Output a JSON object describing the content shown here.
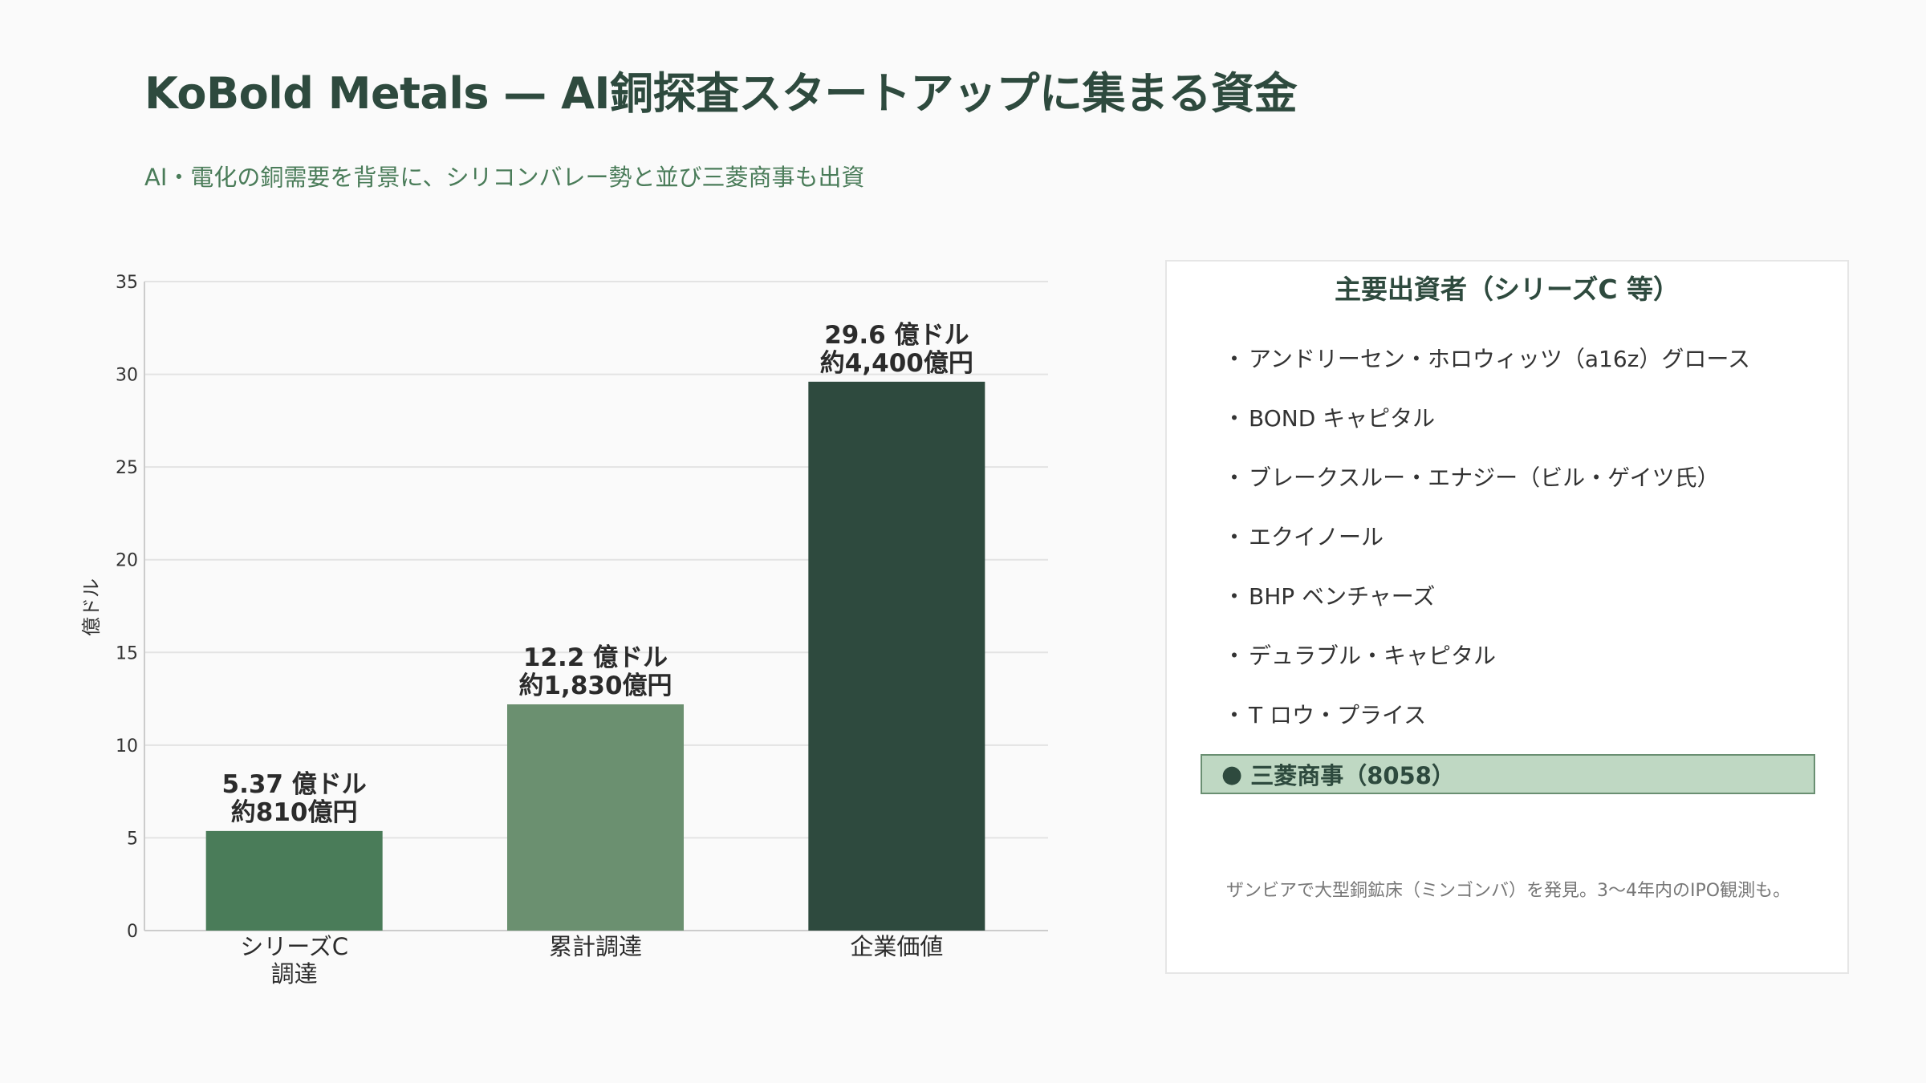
{
  "title": "KoBold Metals — AI銅探査スタートアップに集まる資金",
  "subtitle": "AI・電化の銅需要を背景に、シリコンバレー勢と並び三菱商事も出資",
  "chart_data": {
    "type": "bar",
    "categories": [
      [
        "シリーズC",
        "調達"
      ],
      [
        "累計調達"
      ],
      [
        "企業価値"
      ]
    ],
    "values": [
      5.37,
      12.2,
      29.6
    ],
    "value_labels": [
      [
        "5.37 億ドル",
        "約810億円"
      ],
      [
        "12.2 億ドル",
        "約1,830億円"
      ],
      [
        "29.6 億ドル",
        "約4,400億円"
      ]
    ],
    "colors": [
      "#4a7c59",
      "#6b9070",
      "#2e4a3e"
    ],
    "ylabel": "億ドル",
    "ylim": [
      0,
      35
    ],
    "yticks": [
      0,
      5,
      10,
      15,
      20,
      25,
      30,
      35
    ],
    "grid": true
  },
  "investors": {
    "title": "主要出資者（シリーズC 等）",
    "bullet": "・",
    "items": [
      "アンドリーセン・ホロウィッツ（a16z）グロース",
      "BOND キャピタル",
      "ブレークスルー・エナジー（ビル・ゲイツ氏）",
      "エクイノール",
      "BHP ベンチャーズ",
      "デュラブル・キャピタル",
      "T ロウ・プライス"
    ],
    "highlight_bullet": "●",
    "highlight": "三菱商事（8058）",
    "note": "ザンビアで大型銅鉱床（ミンゴンバ）を発見。3〜4年内のIPO観測も。"
  }
}
